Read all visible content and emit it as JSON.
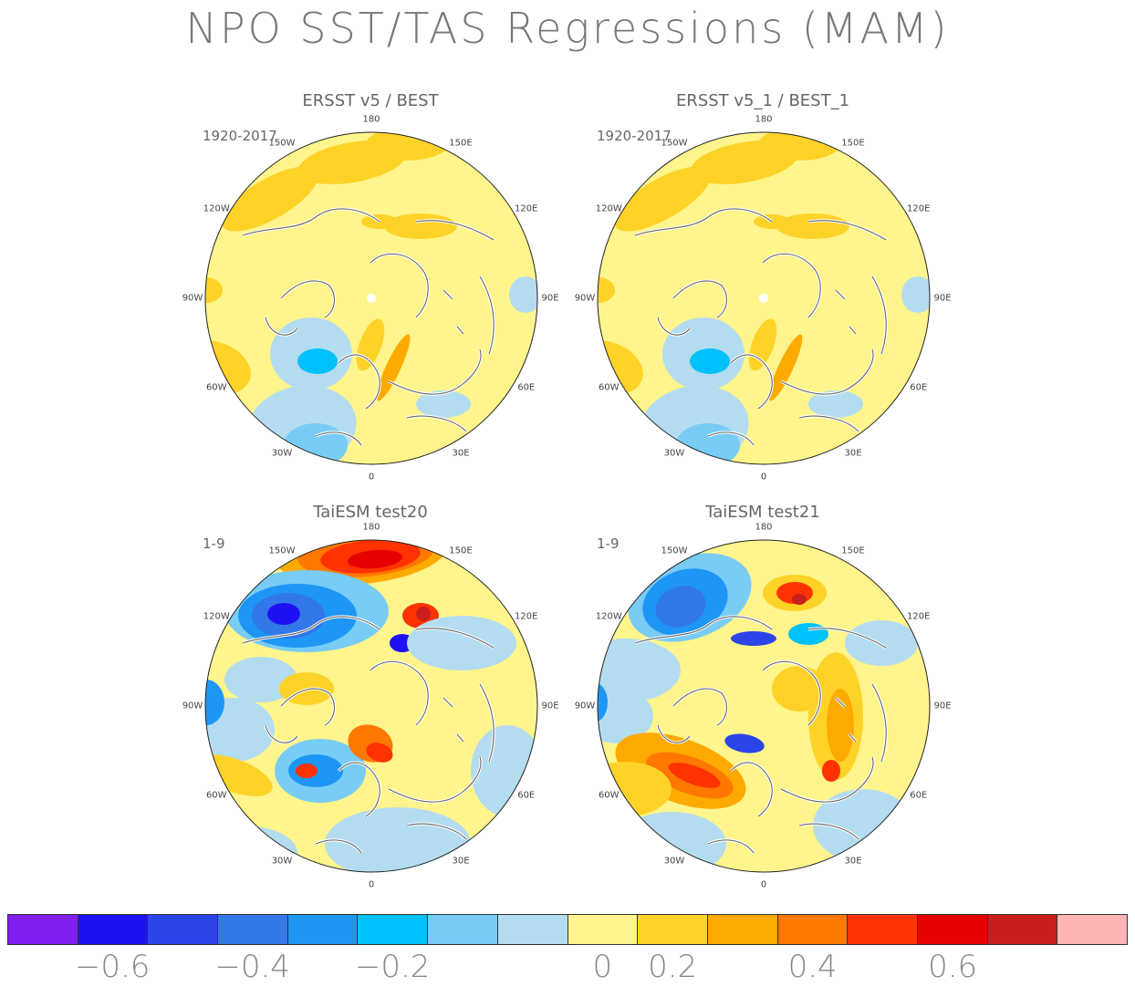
{
  "title": "NPO SST/TAS Regressions (MAM)",
  "panels": [
    {
      "title": "ERSST v5 / BEST",
      "period": "1920-2017",
      "variant": "obs"
    },
    {
      "title": "ERSST v5_1 / BEST_1",
      "period": "1920-2017",
      "variant": "obs"
    },
    {
      "title": "TaiESM test20",
      "period": "1-9",
      "variant": "m20"
    },
    {
      "title": "TaiESM test21",
      "period": "1-9",
      "variant": "m21"
    }
  ],
  "lon_labels": {
    "top": "180",
    "tl1": "150W",
    "tr1": "150E",
    "tl2": "120W",
    "tr2": "120E",
    "left": "90W",
    "right": "90E",
    "bl2": "60W",
    "br2": "60E",
    "bl1": "30W",
    "br1": "30E",
    "bottom": "0"
  },
  "colorbar": {
    "colors": [
      "#8020f0",
      "#1e12f5",
      "#2c45e8",
      "#3278e8",
      "#1e96f5",
      "#00c0fa",
      "#78ccf5",
      "#b4dcf0",
      "#fff58c",
      "#ffd228",
      "#ffaa00",
      "#ff7800",
      "#ff3200",
      "#e60000",
      "#c81e1e",
      "#ffb4b4"
    ],
    "labels": [
      "−0.6",
      "−0.4",
      "−0.2",
      "0",
      "0.2",
      "0.4",
      "0.6"
    ]
  }
}
